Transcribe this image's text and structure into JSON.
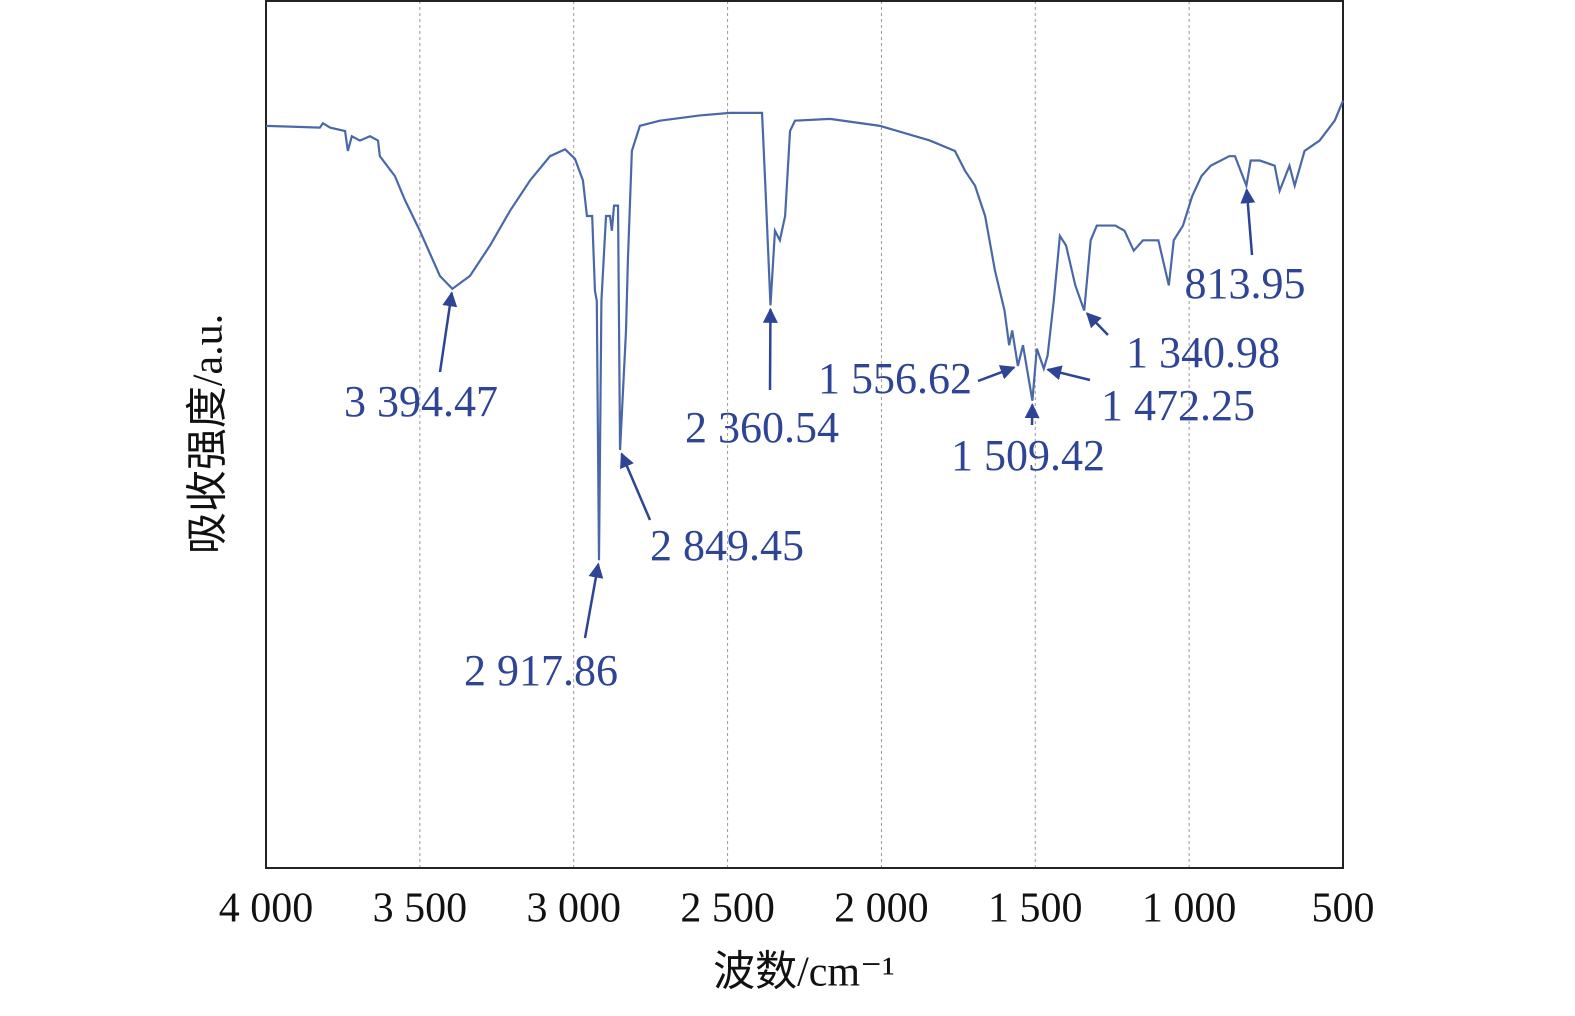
{
  "chart_data": {
    "type": "line",
    "xlabel": "波数/cm⁻¹",
    "ylabel": "吸收强度/a.u.",
    "xlim": [
      4000,
      500
    ],
    "ylim": [
      0,
      100
    ],
    "xticks": [
      {
        "value": 4000,
        "label": "4 000"
      },
      {
        "value": 3500,
        "label": "3 500"
      },
      {
        "value": 3000,
        "label": "3 000"
      },
      {
        "value": 2500,
        "label": "2 500"
      },
      {
        "value": 2000,
        "label": "2 000"
      },
      {
        "value": 1500,
        "label": "1 500"
      },
      {
        "value": 1000,
        "label": "1 000"
      },
      500
    ],
    "grid": true,
    "series": [
      {
        "color": "#4a68a8",
        "x": [
          4000,
          3825,
          3815,
          3792,
          3743,
          3734,
          3721,
          3695,
          3662,
          3636,
          3630,
          3581,
          3548,
          3500,
          3435,
          3394.47,
          3337,
          3272,
          3207,
          3142,
          3077,
          3028,
          2996,
          2970,
          2957,
          2940,
          2931,
          2925,
          2917.86,
          2910,
          2895,
          2882,
          2876,
          2869,
          2856,
          2849.45,
          2830,
          2824,
          2811,
          2785,
          2720,
          2590,
          2492,
          2388,
          2378,
          2360.54,
          2346,
          2330,
          2313,
          2297,
          2281,
          2167,
          2005,
          1842,
          1761,
          1728,
          1696,
          1663,
          1631,
          1600,
          1585,
          1575,
          1556.62,
          1540,
          1509.42,
          1495,
          1472.25,
          1460,
          1440,
          1420,
          1400,
          1370,
          1340.98,
          1320,
          1300,
          1240,
          1210,
          1180,
          1150,
          1100,
          1066,
          1050,
          1020,
          990,
          960,
          930,
          870,
          851,
          813.95,
          800,
          770,
          722,
          706,
          674,
          657,
          625,
          576,
          527,
          500
        ],
        "values": [
          85.6,
          85.4,
          85.9,
          85.4,
          85.0,
          82.7,
          84.4,
          83.9,
          84.4,
          83.9,
          82.1,
          79.8,
          77.0,
          73.5,
          68.3,
          66.8,
          68.3,
          71.8,
          75.8,
          79.3,
          82.1,
          82.9,
          81.8,
          79.3,
          75.2,
          75.2,
          66.6,
          65.4,
          35.5,
          65.4,
          75.2,
          75.2,
          73.5,
          76.4,
          76.4,
          48.2,
          62.0,
          70.0,
          82.7,
          85.6,
          86.2,
          86.8,
          87.1,
          87.1,
          79.3,
          64.9,
          73.5,
          72.4,
          75.2,
          85.0,
          86.2,
          86.4,
          85.6,
          83.9,
          82.7,
          80.4,
          78.7,
          75.2,
          68.9,
          64.3,
          60.3,
          62.0,
          57.9,
          60.3,
          53.9,
          59.9,
          57.6,
          59.1,
          65.4,
          72.9,
          71.8,
          67.2,
          64.3,
          72.4,
          74.1,
          74.1,
          73.5,
          71.2,
          72.4,
          72.4,
          67.2,
          72.4,
          74.1,
          77.5,
          79.8,
          81.0,
          82.1,
          82.1,
          78.7,
          81.6,
          81.6,
          81.0,
          78.1,
          81.0,
          78.7,
          82.7,
          83.9,
          86.2,
          88.5
        ]
      }
    ],
    "annotations": [
      {
        "label": "3 394.47",
        "x": 3394.47
      },
      {
        "label": "2 917.86",
        "x": 2917.86
      },
      {
        "label": "2 849.45",
        "x": 2849.45
      },
      {
        "label": "2 360.54",
        "x": 2360.54
      },
      {
        "label": "1 556.62",
        "x": 1556.62
      },
      {
        "label": "1 509.42",
        "x": 1509.42
      },
      {
        "label": "1 472.25",
        "x": 1472.25
      },
      {
        "label": "1 340.98",
        "x": 1340.98
      },
      {
        "label": "813.95",
        "x": 813.95
      }
    ]
  }
}
